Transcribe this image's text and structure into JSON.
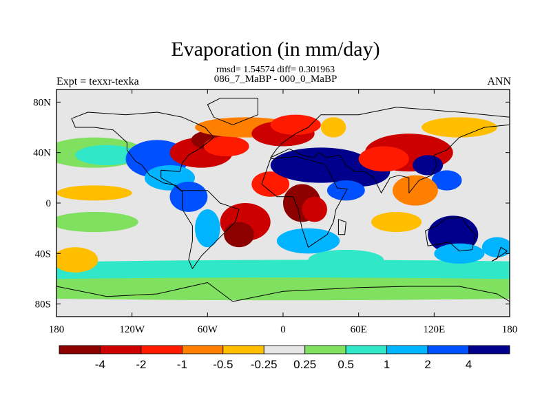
{
  "title": "Evaporation (in mm/day)",
  "stats_line": "rmsd= 1.54574 diff= 0.301963",
  "difference_line": "086_7_MaBP - 000_0_MaBP",
  "experiment_label": "Expt = texxr-texka",
  "season_label": "ANN",
  "chart_data": {
    "type": "heatmap",
    "description_kind": "global lat-lon filled contour map",
    "xlim": [
      -180,
      180
    ],
    "ylim": [
      -90,
      90
    ],
    "x_ticks": [
      {
        "value": -180,
        "label": "180"
      },
      {
        "value": -120,
        "label": "120W"
      },
      {
        "value": -60,
        "label": "60W"
      },
      {
        "value": 0,
        "label": "0"
      },
      {
        "value": 60,
        "label": "60E"
      },
      {
        "value": 120,
        "label": "120E"
      },
      {
        "value": 180,
        "label": "180"
      }
    ],
    "y_ticks": [
      {
        "value": 80,
        "label": "80N"
      },
      {
        "value": 40,
        "label": "40N"
      },
      {
        "value": 0,
        "label": "0"
      },
      {
        "value": -40,
        "label": "40S"
      },
      {
        "value": -80,
        "label": "80S"
      }
    ],
    "colorbar": {
      "colors": [
        "#8c0000",
        "#cc0000",
        "#ff1a00",
        "#ff7f00",
        "#ffbf00",
        "#e6e6e6",
        "#80e060",
        "#30e8c8",
        "#00b4ff",
        "#0050ff",
        "#00008c"
      ],
      "boundary_labels": [
        "-4",
        "-2",
        "-1",
        "-0.5",
        "-0.25",
        "0.25",
        "0.5",
        "1",
        "2",
        "4"
      ]
    },
    "field_blobs": [
      {
        "lon": 0,
        "lat": 0,
        "rx": 360,
        "ry": 180,
        "level": 5
      },
      {
        "lon": 20,
        "lat": -55,
        "rx": 340,
        "ry": 10,
        "level": 7
      },
      {
        "lon": 0,
        "lat": -68,
        "rx": 360,
        "ry": 9,
        "level": 6
      },
      {
        "lon": -150,
        "lat": 40,
        "rx": 40,
        "ry": 12,
        "level": 6
      },
      {
        "lon": -140,
        "lat": 38,
        "rx": 25,
        "ry": 8,
        "level": 7
      },
      {
        "lon": -150,
        "lat": 8,
        "rx": 30,
        "ry": 6,
        "level": 4
      },
      {
        "lon": -150,
        "lat": -15,
        "rx": 35,
        "ry": 8,
        "level": 6
      },
      {
        "lon": -165,
        "lat": -45,
        "rx": 18,
        "ry": 10,
        "level": 4
      },
      {
        "lon": -100,
        "lat": 35,
        "rx": 25,
        "ry": 15,
        "level": 9
      },
      {
        "lon": -90,
        "lat": 20,
        "rx": 20,
        "ry": 10,
        "level": 8
      },
      {
        "lon": -65,
        "lat": 40,
        "rx": 25,
        "ry": 12,
        "level": 1
      },
      {
        "lon": -55,
        "lat": 50,
        "rx": 18,
        "ry": 8,
        "level": 0
      },
      {
        "lon": -45,
        "lat": 45,
        "rx": 18,
        "ry": 8,
        "level": 2
      },
      {
        "lon": -30,
        "lat": 60,
        "rx": 40,
        "ry": 8,
        "level": 3
      },
      {
        "lon": -75,
        "lat": 5,
        "rx": 15,
        "ry": 12,
        "level": 9
      },
      {
        "lon": -30,
        "lat": -15,
        "rx": 20,
        "ry": 15,
        "level": 1
      },
      {
        "lon": -35,
        "lat": -25,
        "rx": 12,
        "ry": 10,
        "level": 0
      },
      {
        "lon": -60,
        "lat": -20,
        "rx": 10,
        "ry": 15,
        "level": 8
      },
      {
        "lon": -10,
        "lat": 15,
        "rx": 15,
        "ry": 10,
        "level": 2
      },
      {
        "lon": 0,
        "lat": 55,
        "rx": 25,
        "ry": 10,
        "level": 1
      },
      {
        "lon": 10,
        "lat": 62,
        "rx": 20,
        "ry": 8,
        "level": 2
      },
      {
        "lon": 40,
        "lat": 60,
        "rx": 10,
        "ry": 8,
        "level": 4
      },
      {
        "lon": 30,
        "lat": 30,
        "rx": 40,
        "ry": 14,
        "level": 10
      },
      {
        "lon": 60,
        "lat": 25,
        "rx": 25,
        "ry": 12,
        "level": 10
      },
      {
        "lon": 50,
        "lat": 10,
        "rx": 15,
        "ry": 8,
        "level": 9
      },
      {
        "lon": 15,
        "lat": 0,
        "rx": 15,
        "ry": 15,
        "level": 0
      },
      {
        "lon": 25,
        "lat": -5,
        "rx": 10,
        "ry": 10,
        "level": 1
      },
      {
        "lon": 20,
        "lat": -30,
        "rx": 25,
        "ry": 10,
        "level": 8
      },
      {
        "lon": 50,
        "lat": -45,
        "rx": 30,
        "ry": 8,
        "level": 7
      },
      {
        "lon": 100,
        "lat": 40,
        "rx": 35,
        "ry": 15,
        "level": 1
      },
      {
        "lon": 80,
        "lat": 35,
        "rx": 20,
        "ry": 10,
        "level": 2
      },
      {
        "lon": 115,
        "lat": 30,
        "rx": 12,
        "ry": 8,
        "level": 10
      },
      {
        "lon": 130,
        "lat": 18,
        "rx": 12,
        "ry": 8,
        "level": 9
      },
      {
        "lon": 105,
        "lat": 10,
        "rx": 18,
        "ry": 12,
        "level": 3
      },
      {
        "lon": 90,
        "lat": -15,
        "rx": 20,
        "ry": 8,
        "level": 4
      },
      {
        "lon": 135,
        "lat": -25,
        "rx": 20,
        "ry": 15,
        "level": 10
      },
      {
        "lon": 140,
        "lat": -40,
        "rx": 20,
        "ry": 8,
        "level": 8
      },
      {
        "lon": 140,
        "lat": 60,
        "rx": 30,
        "ry": 8,
        "level": 4
      },
      {
        "lon": 170,
        "lat": -35,
        "rx": 12,
        "ry": 8,
        "level": 8
      }
    ],
    "coastline_polys": [
      [
        [
          -168,
          67
        ],
        [
          -155,
          72
        ],
        [
          -125,
          70
        ],
        [
          -100,
          72
        ],
        [
          -80,
          68
        ],
        [
          -62,
          60
        ],
        [
          -55,
          52
        ],
        [
          -65,
          44
        ],
        [
          -75,
          38
        ],
        [
          -80,
          32
        ],
        [
          -82,
          25
        ],
        [
          -97,
          26
        ],
        [
          -97,
          20
        ],
        [
          -88,
          15
        ],
        [
          -80,
          9
        ],
        [
          -85,
          14
        ],
        [
          -95,
          16
        ],
        [
          -106,
          22
        ],
        [
          -112,
          30
        ],
        [
          -117,
          33
        ],
        [
          -124,
          42
        ],
        [
          -124,
          48
        ],
        [
          -135,
          58
        ],
        [
          -150,
          60
        ],
        [
          -165,
          60
        ],
        [
          -168,
          67
        ]
      ],
      [
        [
          -80,
          10
        ],
        [
          -60,
          10
        ],
        [
          -50,
          0
        ],
        [
          -35,
          -5
        ],
        [
          -38,
          -15
        ],
        [
          -48,
          -25
        ],
        [
          -58,
          -35
        ],
        [
          -65,
          -42
        ],
        [
          -72,
          -52
        ],
        [
          -75,
          -45
        ],
        [
          -72,
          -30
        ],
        [
          -72,
          -18
        ],
        [
          -80,
          -5
        ],
        [
          -80,
          10
        ]
      ],
      [
        [
          -50,
          83
        ],
        [
          -20,
          83
        ],
        [
          -20,
          70
        ],
        [
          -40,
          62
        ],
        [
          -55,
          68
        ],
        [
          -60,
          78
        ],
        [
          -50,
          83
        ]
      ],
      [
        [
          -10,
          36
        ],
        [
          -5,
          43
        ],
        [
          0,
          48
        ],
        [
          10,
          55
        ],
        [
          20,
          60
        ],
        [
          30,
          70
        ],
        [
          60,
          70
        ],
        [
          90,
          76
        ],
        [
          140,
          72
        ],
        [
          180,
          68
        ],
        [
          180,
          62
        ],
        [
          160,
          60
        ],
        [
          140,
          52
        ],
        [
          130,
          42
        ],
        [
          120,
          38
        ],
        [
          122,
          30
        ],
        [
          118,
          22
        ],
        [
          108,
          18
        ],
        [
          100,
          8
        ],
        [
          100,
          20
        ],
        [
          92,
          22
        ],
        [
          85,
          20
        ],
        [
          78,
          8
        ],
        [
          72,
          20
        ],
        [
          65,
          25
        ],
        [
          57,
          25
        ],
        [
          50,
          30
        ],
        [
          45,
          38
        ],
        [
          35,
          36
        ],
        [
          28,
          40
        ],
        [
          25,
          36
        ],
        [
          15,
          38
        ],
        [
          5,
          43
        ],
        [
          -10,
          36
        ]
      ],
      [
        [
          -17,
          15
        ],
        [
          -10,
          35
        ],
        [
          10,
          37
        ],
        [
          32,
          31
        ],
        [
          35,
          28
        ],
        [
          43,
          12
        ],
        [
          51,
          11
        ],
        [
          42,
          -5
        ],
        [
          40,
          -15
        ],
        [
          35,
          -25
        ],
        [
          20,
          -35
        ],
        [
          15,
          -20
        ],
        [
          12,
          -5
        ],
        [
          8,
          5
        ],
        [
          -5,
          5
        ],
        [
          -17,
          15
        ]
      ],
      [
        [
          44,
          -13
        ],
        [
          50,
          -15
        ],
        [
          49,
          -25
        ],
        [
          44,
          -25
        ],
        [
          44,
          -13
        ]
      ],
      [
        [
          113,
          -22
        ],
        [
          122,
          -18
        ],
        [
          130,
          -12
        ],
        [
          137,
          -12
        ],
        [
          142,
          -11
        ],
        [
          146,
          -18
        ],
        [
          153,
          -25
        ],
        [
          150,
          -37
        ],
        [
          140,
          -38
        ],
        [
          132,
          -31
        ],
        [
          115,
          -34
        ],
        [
          113,
          -22
        ]
      ],
      [
        [
          166,
          -46
        ],
        [
          174,
          -41
        ],
        [
          178,
          -38
        ],
        [
          173,
          -35
        ],
        [
          170,
          -44
        ],
        [
          166,
          -46
        ]
      ],
      [
        [
          -180,
          -66
        ],
        [
          -140,
          -74
        ],
        [
          -100,
          -72
        ],
        [
          -60,
          -63
        ],
        [
          -40,
          -78
        ],
        [
          0,
          -70
        ],
        [
          60,
          -67
        ],
        [
          100,
          -66
        ],
        [
          140,
          -66
        ],
        [
          170,
          -72
        ],
        [
          180,
          -78
        ],
        [
          180,
          -90
        ],
        [
          -180,
          -90
        ],
        [
          -180,
          -66
        ]
      ]
    ]
  }
}
